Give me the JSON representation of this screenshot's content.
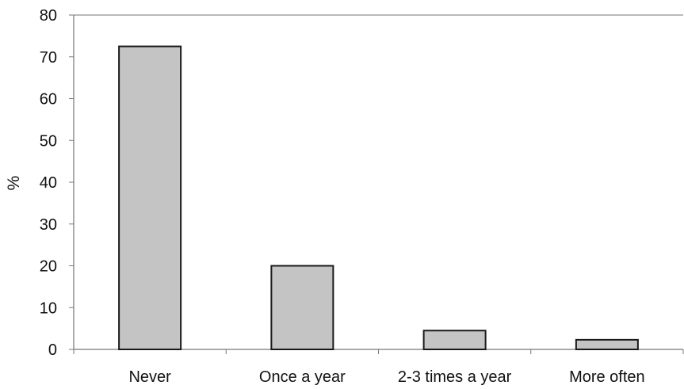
{
  "chart_data": {
    "type": "bar",
    "title": "",
    "xlabel": "",
    "ylabel": "%",
    "categories": [
      "Never",
      "Once a year",
      "2-3 times a year",
      "More often"
    ],
    "values": [
      72.5,
      20,
      4.5,
      2.3
    ],
    "ylim": [
      0,
      80
    ],
    "yticks": [
      0,
      10,
      20,
      30,
      40,
      50,
      60,
      70,
      80
    ],
    "grid": false,
    "legend": "none",
    "colors": {
      "bar_fill": "#c4c4c4",
      "bar_stroke": "#1a1a1a",
      "axis": "#777777",
      "text": "#111111"
    }
  }
}
